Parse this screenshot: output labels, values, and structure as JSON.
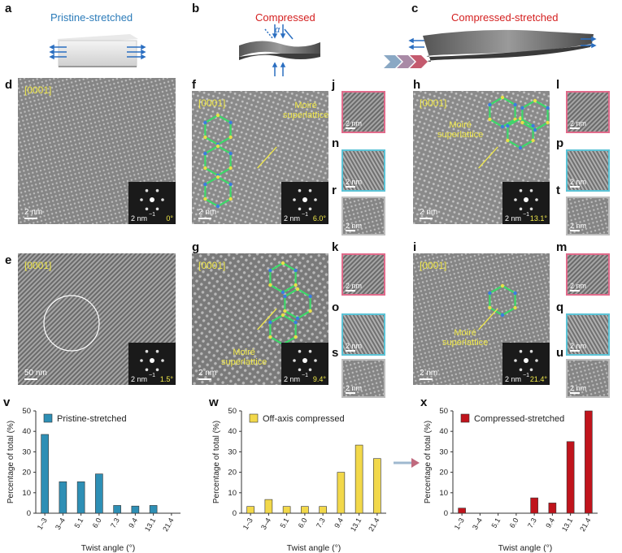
{
  "panels_top": {
    "a": {
      "letter": "a",
      "title": "Pristine-stretched"
    },
    "b": {
      "letter": "b",
      "title": "Compressed",
      "alpha": "α"
    },
    "c": {
      "letter": "c",
      "title": "Compressed-stretched"
    }
  },
  "tem_panels": {
    "d": {
      "letter": "d",
      "tag": "[0001]",
      "scale": "2 nm",
      "inset_scale": "2 nm",
      "inset_exp": "−1",
      "angle": "0°"
    },
    "e": {
      "letter": "e",
      "tag": "[0001]",
      "scale": "50 nm",
      "inset_scale": "2 nm",
      "inset_exp": "−1",
      "angle": "1.5°"
    },
    "f": {
      "letter": "f",
      "tag": "[0001]",
      "scale": "2 nm",
      "inset_scale": "2 nm",
      "inset_exp": "−1",
      "angle": "6.0°",
      "moire1": "Moiré",
      "moire2": "superlattice"
    },
    "g": {
      "letter": "g",
      "tag": "[0001]",
      "scale": "2 nm",
      "inset_scale": "2 nm",
      "inset_exp": "−1",
      "angle": "9.4°",
      "moire1": "Moiré",
      "moire2": "superlattice"
    },
    "h": {
      "letter": "h",
      "tag": "[0001]",
      "scale": "2 nm",
      "inset_scale": "2 nm",
      "inset_exp": "−1",
      "angle": "13.1°",
      "moire1": "Moiré",
      "moire2": "superlattice"
    },
    "i": {
      "letter": "i",
      "tag": "[0001]",
      "scale": "2 nm",
      "inset_scale": "2 nm",
      "inset_exp": "−1",
      "angle": "21.4°",
      "moire1": "Moiré",
      "moire2": "superlattice"
    }
  },
  "small_panels": {
    "j": {
      "letter": "j",
      "scale": "2 nm"
    },
    "n": {
      "letter": "n",
      "scale": "2 nm"
    },
    "r": {
      "letter": "r",
      "scale": "2 nm"
    },
    "k": {
      "letter": "k",
      "scale": "2 nm"
    },
    "o": {
      "letter": "o",
      "scale": "2 nm"
    },
    "s": {
      "letter": "s",
      "scale": "2 nm"
    },
    "l": {
      "letter": "l",
      "scale": "2 nm"
    },
    "p": {
      "letter": "p",
      "scale": "2 nm"
    },
    "t": {
      "letter": "t",
      "scale": "2 nm"
    },
    "m": {
      "letter": "m",
      "scale": "2 nm"
    },
    "q": {
      "letter": "q",
      "scale": "2 nm"
    },
    "u": {
      "letter": "u",
      "scale": "2 nm"
    }
  },
  "colors": {
    "pink": "#e06a8a",
    "cyan": "#5bc3d6",
    "gray": "#bdbdbd",
    "blue_bar": "#2e8fb5",
    "yellow_bar": "#f2d84a",
    "red_bar": "#c0141c",
    "title_blue": "#2b7bb9",
    "title_red": "#d42020"
  },
  "chart_data": [
    {
      "letter": "v",
      "type": "bar",
      "legend": "Pristine-stretched",
      "categories": [
        "1–3",
        "3–4",
        "5.1",
        "6.0",
        "7.3",
        "9.4",
        "13.1",
        "21.4"
      ],
      "values": [
        38.5,
        15.4,
        15.4,
        19.2,
        3.8,
        3.5,
        3.8,
        0
      ],
      "xlabel": "Twist angle (°)",
      "ylabel": "Percentage of total (%)",
      "ylim": [
        0,
        50
      ],
      "yticks": [
        "0",
        "10",
        "20",
        "30",
        "40",
        "50"
      ]
    },
    {
      "letter": "w",
      "type": "bar",
      "legend": "Off-axis compressed",
      "categories": [
        "1–3",
        "3–4",
        "5.1",
        "6.0",
        "7.3",
        "9.4",
        "13.1",
        "21.4"
      ],
      "values": [
        3.3,
        6.7,
        3.3,
        3.3,
        3.3,
        20.0,
        33.3,
        26.7
      ],
      "xlabel": "Twist angle (°)",
      "ylabel": "Percentage of total (%)",
      "ylim": [
        0,
        50
      ],
      "yticks": [
        "0",
        "10",
        "20",
        "30",
        "40",
        "50"
      ]
    },
    {
      "letter": "x",
      "type": "bar",
      "legend": "Compressed-stretched",
      "categories": [
        "1–3",
        "3–4",
        "5.1",
        "6.0",
        "7.3",
        "9.4",
        "13.1",
        "21.4"
      ],
      "values": [
        2.5,
        0,
        0,
        0,
        7.5,
        5.0,
        35.0,
        50.0
      ],
      "xlabel": "Twist angle (°)",
      "ylabel": "Percentage of total (%)",
      "ylim": [
        0,
        50
      ],
      "yticks": [
        "0",
        "10",
        "20",
        "30",
        "40",
        "50"
      ]
    }
  ]
}
